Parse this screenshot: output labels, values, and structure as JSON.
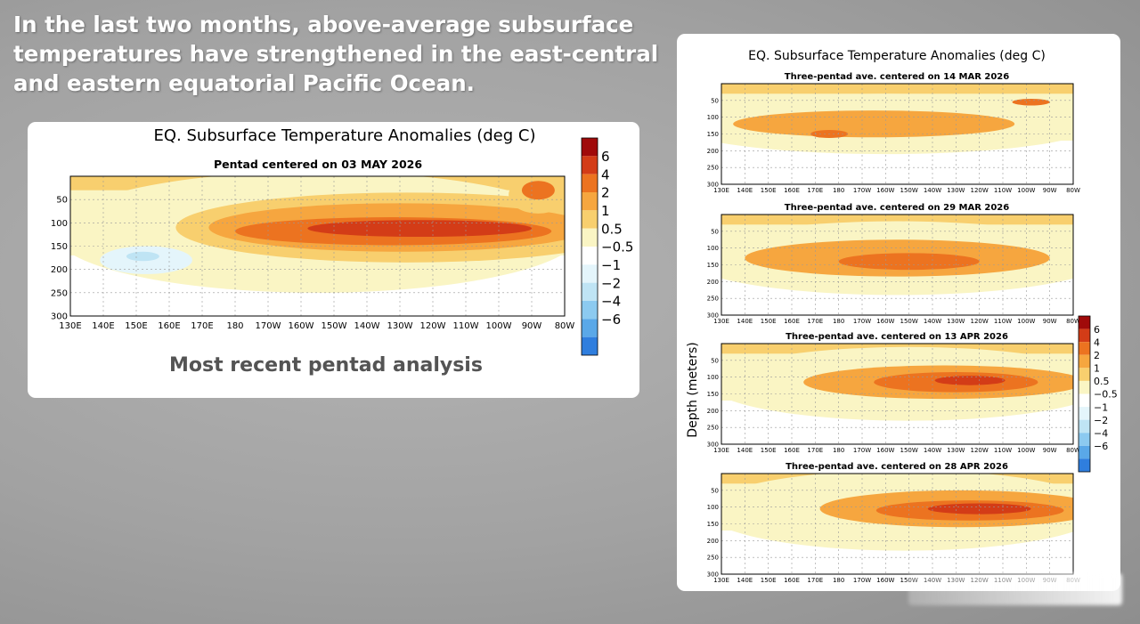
{
  "headline": "In the last two months, above-average subsurface temperatures have strengthened in the east-central and eastern equatorial Pacific Ocean.",
  "caption": "Most recent pentad analysis",
  "colors": {
    "levels": [
      "#ffffff",
      "#faf5c4",
      "#f8cf6e",
      "#f6a63f",
      "#ec7320",
      "#d33c17",
      "#a00a0a"
    ],
    "negative": [
      "#e4f5fb",
      "#bfe4f4",
      "#8ccaf0",
      "#5aa8e8",
      "#2f7ede"
    ]
  },
  "chart_data": [
    {
      "type": "heatmap",
      "title": "EQ. Subsurface Temperature Anomalies (deg C)",
      "subtitle": "Pentad centered on 03 MAY 2026",
      "x_ticks": [
        "130E",
        "140E",
        "150E",
        "160E",
        "170E",
        "180",
        "170W",
        "160W",
        "150W",
        "140W",
        "130W",
        "120W",
        "110W",
        "100W",
        "90W",
        "80W"
      ],
      "y_ticks": [
        "50",
        "100",
        "150",
        "200",
        "250",
        "300"
      ],
      "xlim": [
        130,
        280
      ],
      "ylim": [
        0,
        300
      ],
      "colorbar_ticks": [
        "6",
        "4",
        "2",
        "1",
        "0.5",
        "−0.5",
        "−1",
        "−2",
        "−4",
        "−6"
      ],
      "features": [
        {
          "level": 1,
          "lon": 205,
          "depth": 120,
          "rlon": 80,
          "rdepth": 130
        },
        {
          "level": 2,
          "lon": 232,
          "depth": 110,
          "rlon": 70,
          "rdepth": 75
        },
        {
          "level": 3,
          "lon": 230,
          "depth": 110,
          "rlon": 58,
          "rdepth": 52
        },
        {
          "level": 4,
          "lon": 228,
          "depth": 118,
          "rlon": 48,
          "rdepth": 30
        },
        {
          "level": 5,
          "lon": 236,
          "depth": 112,
          "rlon": 34,
          "rdepth": 18
        },
        {
          "level": 2,
          "lon": 272,
          "depth": 40,
          "rlon": 9,
          "rdepth": 40
        },
        {
          "level": 4,
          "lon": 272,
          "depth": 30,
          "rlon": 5,
          "rdepth": 20
        },
        {
          "level": -1,
          "lon": 153,
          "depth": 180,
          "rlon": 14,
          "rdepth": 30
        },
        {
          "level": -2,
          "lon": 152,
          "depth": 172,
          "rlon": 5,
          "rdepth": 10
        }
      ]
    },
    {
      "type": "heatmap",
      "title": "EQ. Subsurface Temperature Anomalies (deg C)",
      "panels": [
        {
          "subtitle": "Three-pentad ave. centered on 14 MAR 2026",
          "features": [
            {
              "level": 1,
              "lon": 200,
              "depth": 120,
              "rlon": 90,
              "rdepth": 90
            },
            {
              "level": 3,
              "lon": 195,
              "depth": 120,
              "rlon": 60,
              "rdepth": 40
            },
            {
              "level": 4,
              "lon": 176,
              "depth": 150,
              "rlon": 8,
              "rdepth": 12
            },
            {
              "level": 4,
              "lon": 262,
              "depth": 55,
              "rlon": 8,
              "rdepth": 10
            }
          ]
        },
        {
          "subtitle": "Three-pentad ave. centered on 29 MAR 2026",
          "features": [
            {
              "level": 1,
              "lon": 205,
              "depth": 130,
              "rlon": 90,
              "rdepth": 110
            },
            {
              "level": 3,
              "lon": 205,
              "depth": 130,
              "rlon": 65,
              "rdepth": 55
            },
            {
              "level": 4,
              "lon": 210,
              "depth": 140,
              "rlon": 30,
              "rdepth": 25
            }
          ]
        },
        {
          "subtitle": "Three-pentad ave. centered on 13 APR 2026",
          "features": [
            {
              "level": 1,
              "lon": 210,
              "depth": 120,
              "rlon": 85,
              "rdepth": 110
            },
            {
              "level": 3,
              "lon": 225,
              "depth": 115,
              "rlon": 60,
              "rdepth": 50
            },
            {
              "level": 4,
              "lon": 230,
              "depth": 115,
              "rlon": 35,
              "rdepth": 30
            },
            {
              "level": 5,
              "lon": 236,
              "depth": 110,
              "rlon": 15,
              "rdepth": 14
            }
          ]
        },
        {
          "subtitle": "Three-pentad ave. centered on 28 APR 2026",
          "features": [
            {
              "level": 1,
              "lon": 208,
              "depth": 110,
              "rlon": 85,
              "rdepth": 120
            },
            {
              "level": 3,
              "lon": 232,
              "depth": 105,
              "rlon": 60,
              "rdepth": 55
            },
            {
              "level": 4,
              "lon": 236,
              "depth": 110,
              "rlon": 40,
              "rdepth": 30
            },
            {
              "level": 5,
              "lon": 240,
              "depth": 105,
              "rlon": 22,
              "rdepth": 16
            }
          ]
        }
      ],
      "ylabel": "Depth (meters)",
      "x_ticks": [
        "130E",
        "140E",
        "150E",
        "160E",
        "170E",
        "180",
        "170W",
        "160W",
        "150W",
        "140W",
        "130W",
        "120W",
        "110W",
        "100W",
        "90W",
        "80W"
      ],
      "y_ticks": [
        "50",
        "100",
        "150",
        "200",
        "250",
        "300"
      ],
      "colorbar_ticks": [
        "6",
        "4",
        "2",
        "1",
        "0.5",
        "−0.5",
        "−1",
        "−2",
        "−4",
        "−6"
      ]
    }
  ]
}
